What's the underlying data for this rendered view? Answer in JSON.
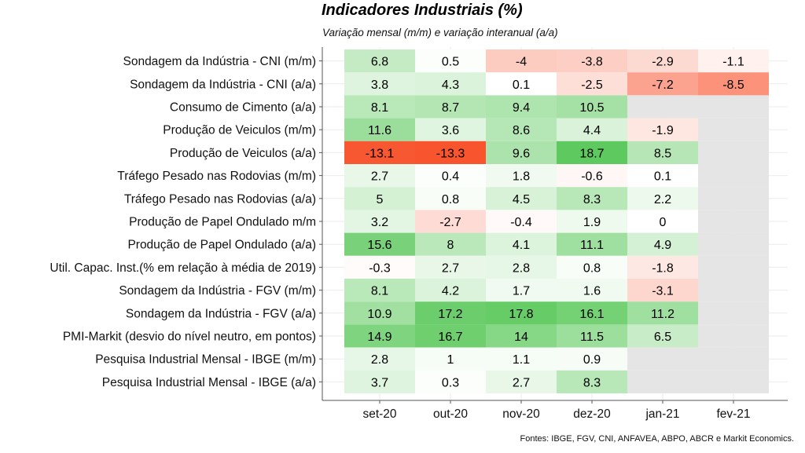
{
  "chart_data": {
    "type": "heatmap",
    "title": "Indicadores Industriais (%)",
    "subtitle": "Variação mensal (m/m) e  variação interanual (a/a)",
    "source": "Fontes: IBGE, FGV, CNI, ANFAVEA, ABPO, ABCR e Markit Economics.",
    "columns": [
      "set-20",
      "out-20",
      "nov-20",
      "dez-20",
      "jan-21",
      "fev-21"
    ],
    "rows": [
      {
        "label": "Sondagem da Indústria - CNI (m/m)",
        "values": [
          6.8,
          0.5,
          -4,
          -3.8,
          -2.9,
          -1.1
        ]
      },
      {
        "label": "Sondagem da Indústria - CNI (a/a)",
        "values": [
          3.8,
          4.3,
          0.1,
          -2.5,
          -7.2,
          -8.5
        ]
      },
      {
        "label": "Consumo de Cimento (a/a)",
        "values": [
          8.1,
          8.7,
          9.4,
          10.5,
          null,
          null
        ]
      },
      {
        "label": "Produção de Veiculos (m/m)",
        "values": [
          11.6,
          3.6,
          8.6,
          4.4,
          -1.9,
          null
        ]
      },
      {
        "label": "Produção de Veiculos (a/a)",
        "values": [
          -13.1,
          -13.3,
          9.6,
          18.7,
          8.5,
          null
        ]
      },
      {
        "label": "Tráfego Pesado nas Rodovias (m/m)",
        "values": [
          2.7,
          0.4,
          1.8,
          -0.6,
          0.1,
          null
        ]
      },
      {
        "label": "Tráfego Pesado nas Rodovias (a/a)",
        "values": [
          5,
          0.8,
          4.5,
          8.3,
          2.2,
          null
        ]
      },
      {
        "label": "Produção de Papel Ondulado m/m",
        "values": [
          3.2,
          -2.7,
          -0.4,
          1.9,
          0,
          null
        ]
      },
      {
        "label": "Produção de Papel Ondulado (a/a)",
        "values": [
          15.6,
          8,
          4.1,
          11.1,
          4.9,
          null
        ]
      },
      {
        "label": "Util. Capac. Inst.(% em relação à média de 2019)",
        "values": [
          -0.3,
          2.7,
          2.8,
          0.8,
          -1.8,
          null
        ]
      },
      {
        "label": "Sondagem da Indústria - FGV (m/m)",
        "values": [
          8.1,
          4.2,
          1.7,
          1.6,
          -3.1,
          null
        ]
      },
      {
        "label": "Sondagem da Indústria - FGV (a/a)",
        "values": [
          10.9,
          17.2,
          17.8,
          16.1,
          11.2,
          null
        ]
      },
      {
        "label": "PMI-Markit (desvio do nível neutro, em pontos)",
        "values": [
          14.9,
          16.7,
          14,
          11.5,
          6.5,
          null
        ]
      },
      {
        "label": "Pesquisa Industrial Mensal - IBGE (m/m)",
        "values": [
          2.8,
          1,
          1.1,
          0.9,
          null,
          null
        ]
      },
      {
        "label": "Pesquisa Industrial Mensal - IBGE (a/a)",
        "values": [
          3.7,
          0.3,
          2.7,
          8.3,
          null,
          null
        ]
      }
    ],
    "colors": {
      "low": "#f8552e",
      "mid": "#ffffff",
      "high": "#5ec95e",
      "missing": "#e5e5e5",
      "grid": "#ebebeb",
      "axis": "#555555"
    },
    "color_limits": [
      -13.3,
      18.7
    ],
    "legend": "none"
  }
}
